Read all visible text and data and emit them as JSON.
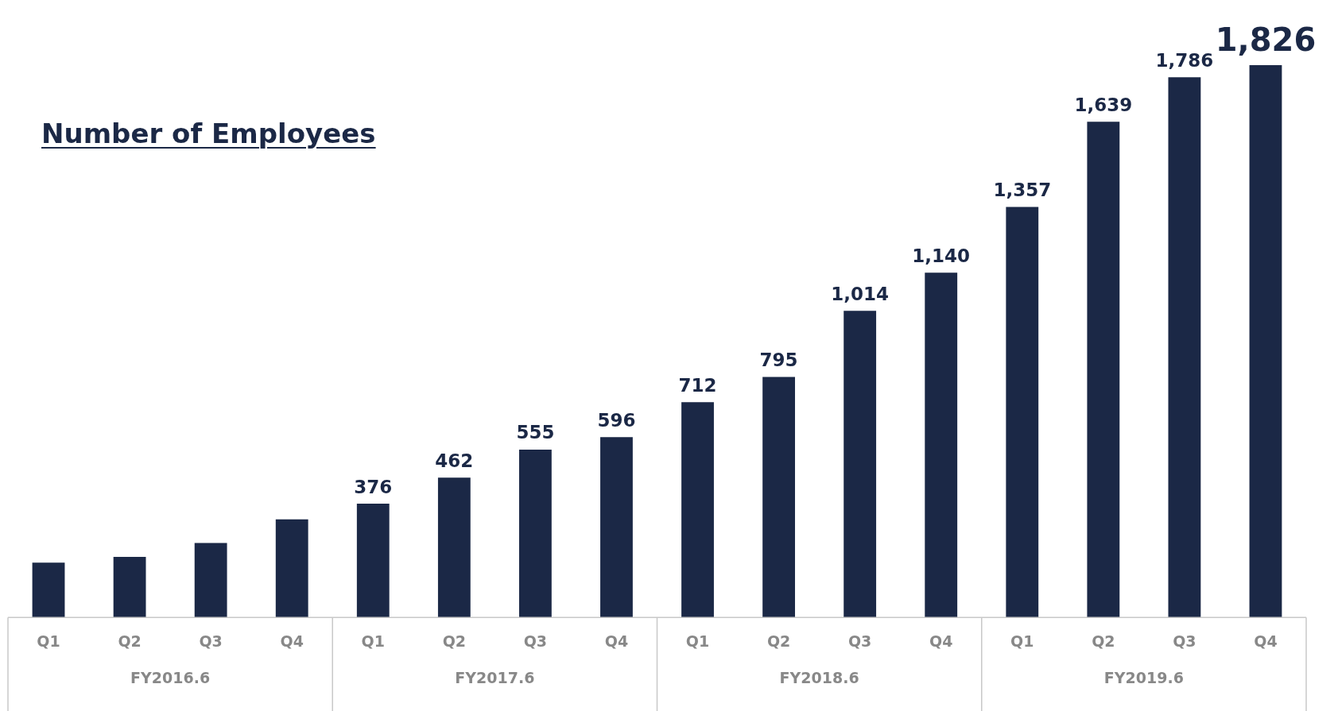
{
  "chart_data": {
    "type": "bar",
    "title": "Number of Employees",
    "categories": [
      "Q1",
      "Q2",
      "Q3",
      "Q4",
      "Q1",
      "Q2",
      "Q3",
      "Q4",
      "Q1",
      "Q2",
      "Q3",
      "Q4",
      "Q1",
      "Q2",
      "Q3",
      "Q4"
    ],
    "values": [
      181,
      200,
      246,
      324,
      376,
      462,
      555,
      596,
      712,
      795,
      1014,
      1140,
      1357,
      1639,
      1786,
      1826
    ],
    "value_labels": [
      null,
      null,
      null,
      null,
      "376",
      "462",
      "555",
      "596",
      "712",
      "795",
      "1,014",
      "1,140",
      "1,357",
      "1,639",
      "1,786",
      "1,826"
    ],
    "color": "#1b2846",
    "annotations": [
      "FY2016.6",
      "FY2017.6",
      "FY2018.6",
      "FY2019.6"
    ],
    "grid": false,
    "legend": false
  }
}
